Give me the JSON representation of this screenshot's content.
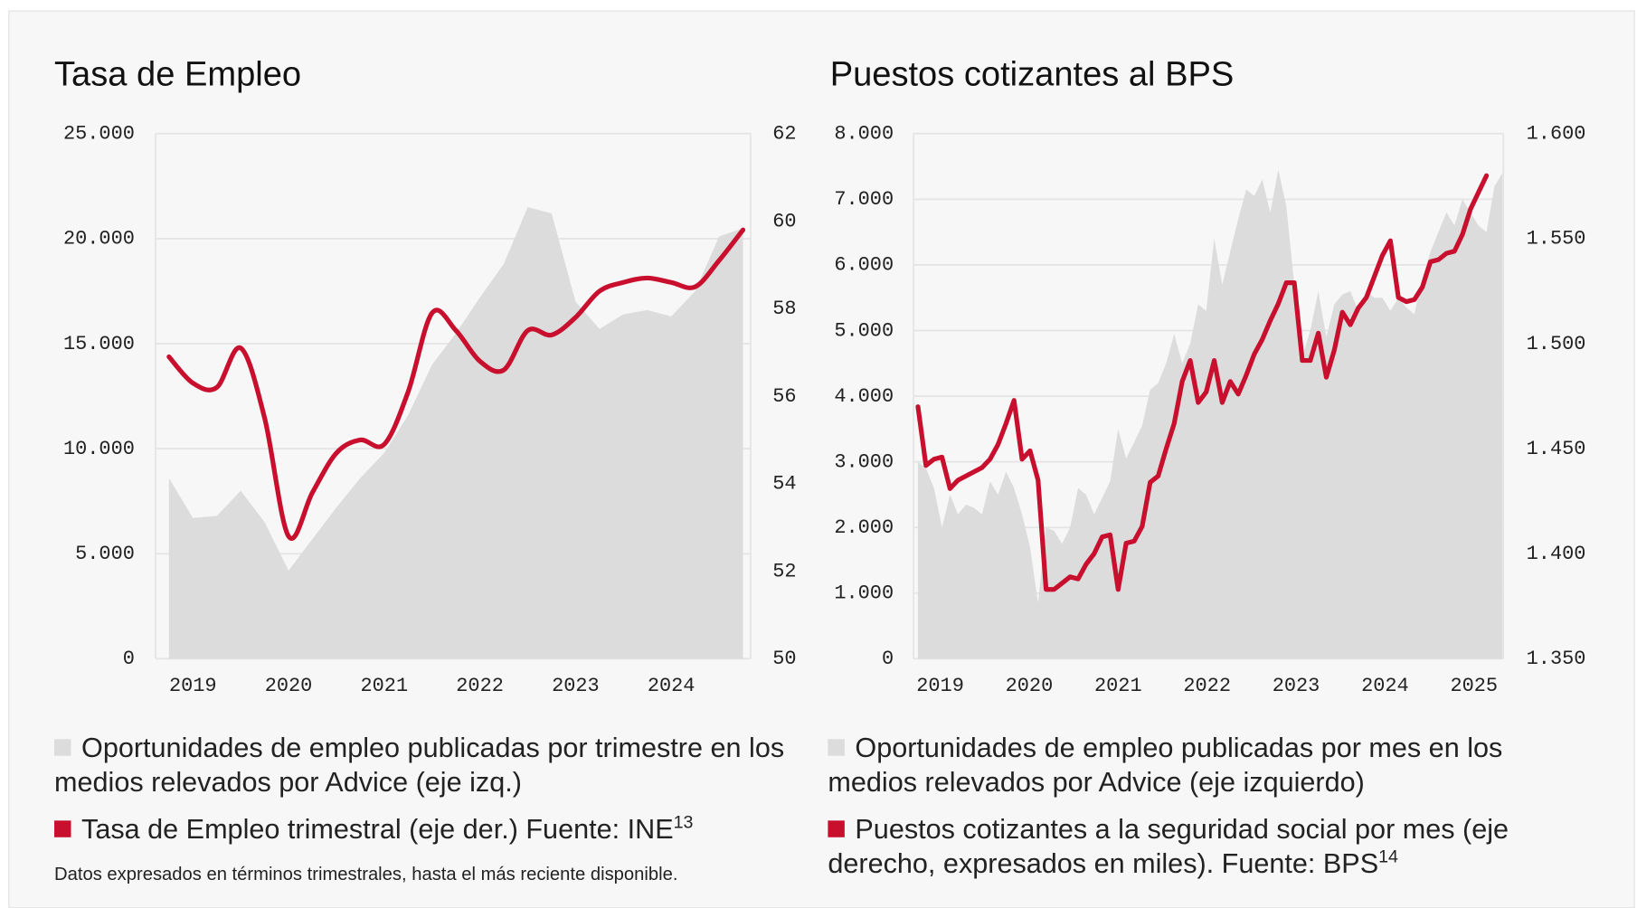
{
  "chart_data": [
    {
      "type": "area-line",
      "title": "Tasa de Empleo",
      "x": [
        2018.75,
        2019,
        2019.25,
        2019.5,
        2019.75,
        2020,
        2020.25,
        2020.5,
        2020.75,
        2021,
        2021.25,
        2021.5,
        2021.75,
        2022,
        2022.25,
        2022.5,
        2022.75,
        2023,
        2023.25,
        2023.5,
        2023.75,
        2024,
        2024.25,
        2024.5,
        2024.75
      ],
      "xlim": [
        2018.61,
        2024.83
      ],
      "xticks": [
        2019,
        2020,
        2021,
        2022,
        2023,
        2024
      ],
      "ylim": [
        0,
        25000
      ],
      "yticks": [
        0,
        {
          "value": 5000,
          "label": "5.000"
        },
        {
          "value": 10000,
          "label": "10.000"
        },
        {
          "value": 15000,
          "label": "15.000"
        },
        {
          "value": 20000,
          "label": "20.000"
        },
        {
          "value": 25000,
          "label": "25.000"
        }
      ],
      "y2lim": [
        50,
        62
      ],
      "y2ticks": [
        50,
        52,
        54,
        56,
        58,
        60,
        62
      ],
      "grid": true,
      "series": [
        {
          "name": "Oportunidades de empleo publicadas por trimestre en los medios relevados por Advice (eje izq.)",
          "color": "#dcdcdc",
          "kind": "area",
          "values": [
            8600,
            6700,
            6800,
            8000,
            6500,
            4200,
            5700,
            7200,
            8600,
            9800,
            11600,
            14000,
            15500,
            17200,
            18800,
            21500,
            21200,
            17000,
            15700,
            16400,
            16600,
            16300,
            17500,
            20100,
            20500
          ]
        },
        {
          "name": "Tasa de Empleo trimestral (eje der.) Fuente: INE",
          "note_ref": "13",
          "color": "#c8102e",
          "kind": "line",
          "axis": "y2",
          "smooth": true,
          "values": [
            56.9,
            56.3,
            56.2,
            57.1,
            55.5,
            52.8,
            53.8,
            54.7,
            55.0,
            54.9,
            56.1,
            57.9,
            57.5,
            56.8,
            56.6,
            57.5,
            57.4,
            57.8,
            58.4,
            58.6,
            58.7,
            58.6,
            58.5,
            59.1,
            59.8
          ]
        }
      ],
      "note": "Datos expresados en términos trimestrales, hasta el más reciente disponible."
    },
    {
      "type": "area-line",
      "title": "Puestos cotizantes al BPS",
      "x": [
        2018.75,
        2018.84,
        2018.93,
        2019.02,
        2019.11,
        2019.2,
        2019.29,
        2019.38,
        2019.47,
        2019.56,
        2019.65,
        2019.74,
        2019.83,
        2019.92,
        2020.01,
        2020.1,
        2020.19,
        2020.28,
        2020.37,
        2020.46,
        2020.55,
        2020.64,
        2020.73,
        2020.82,
        2020.91,
        2021.0,
        2021.09,
        2021.18,
        2021.27,
        2021.36,
        2021.45,
        2021.54,
        2021.63,
        2021.72,
        2021.81,
        2021.9,
        2021.99,
        2022.08,
        2022.17,
        2022.26,
        2022.35,
        2022.44,
        2022.53,
        2022.62,
        2022.71,
        2022.8,
        2022.89,
        2022.98,
        2023.07,
        2023.16,
        2023.25,
        2023.34,
        2023.43,
        2023.52,
        2023.61,
        2023.7,
        2023.79,
        2023.88,
        2023.97,
        2024.06,
        2024.15,
        2024.24,
        2024.33,
        2024.42,
        2024.51,
        2024.6,
        2024.69,
        2024.78,
        2024.87,
        2024.96,
        2025.05,
        2025.14,
        2025.23,
        2025.32
      ],
      "xlim": [
        2018.7,
        2025.33
      ],
      "xticks": [
        2019,
        2020,
        2021,
        2022,
        2023,
        2024,
        2025
      ],
      "ylim": [
        0,
        8000
      ],
      "yticks": [
        0,
        {
          "value": 1000,
          "label": "1.000"
        },
        {
          "value": 2000,
          "label": "2.000"
        },
        {
          "value": 3000,
          "label": "3.000"
        },
        {
          "value": 4000,
          "label": "4.000"
        },
        {
          "value": 5000,
          "label": "5.000"
        },
        {
          "value": 6000,
          "label": "6.000"
        },
        {
          "value": 7000,
          "label": "7.000"
        },
        {
          "value": 8000,
          "label": "8.000"
        }
      ],
      "y2lim": [
        1350,
        1600
      ],
      "y2ticks": [
        {
          "value": 1350,
          "label": "1.350"
        },
        {
          "value": 1400,
          "label": "1.400"
        },
        {
          "value": 1450,
          "label": "1.450"
        },
        {
          "value": 1500,
          "label": "1.500"
        },
        {
          "value": 1550,
          "label": "1.550"
        },
        {
          "value": 1600,
          "label": "1.600"
        }
      ],
      "grid": true,
      "series": [
        {
          "name": "Oportunidades de empleo publicadas por mes en los medios relevados por Advice (eje izquierdo)",
          "color": "#dcdcdc",
          "kind": "area",
          "values": [
            3000,
            2900,
            2600,
            2000,
            2500,
            2200,
            2350,
            2300,
            2200,
            2700,
            2500,
            2850,
            2600,
            2200,
            1700,
            850,
            2000,
            1950,
            1750,
            2000,
            2600,
            2500,
            2200,
            2450,
            2700,
            3500,
            3050,
            3300,
            3550,
            4100,
            4200,
            4500,
            4950,
            4500,
            4800,
            5400,
            5300,
            6400,
            5700,
            6200,
            6700,
            7150,
            7050,
            7300,
            6800,
            7450,
            6900,
            5700,
            4600,
            5000,
            5600,
            4900,
            5400,
            5550,
            5600,
            5300,
            5600,
            5500,
            5500,
            5300,
            5500,
            5350,
            5250,
            5800,
            6200,
            6500,
            6800,
            6600,
            7000,
            6800,
            6600,
            6500,
            7200,
            7400
          ]
        },
        {
          "name": "Puestos cotizantes a la seguridad social por mes (eje derecho, expresados en miles). Fuente: BPS",
          "note_ref": "14",
          "color": "#c8102e",
          "kind": "line",
          "axis": "y2",
          "smooth": false,
          "values": [
            1470,
            1442,
            1445,
            1446,
            1431,
            1435,
            1437,
            1439,
            1441,
            1445,
            1452,
            1462,
            1473,
            1445,
            1449,
            1435,
            1383,
            1383,
            1386,
            1389,
            1388,
            1395,
            1400,
            1408,
            1409,
            1383,
            1405,
            1406,
            1413,
            1434,
            1437,
            1450,
            1462,
            1482,
            1492,
            1472,
            1477,
            1492,
            1472,
            1482,
            1476,
            1485,
            1495,
            1502,
            1511,
            1519,
            1529,
            1529,
            1492,
            1492,
            1505,
            1484,
            1497,
            1515,
            1509,
            1517,
            1522,
            1532,
            1542,
            1549,
            1522,
            1520,
            1521,
            1527,
            1539,
            1540,
            1543,
            1544,
            1552,
            1564,
            1572,
            1580,
            null,
            null
          ]
        }
      ]
    }
  ]
}
